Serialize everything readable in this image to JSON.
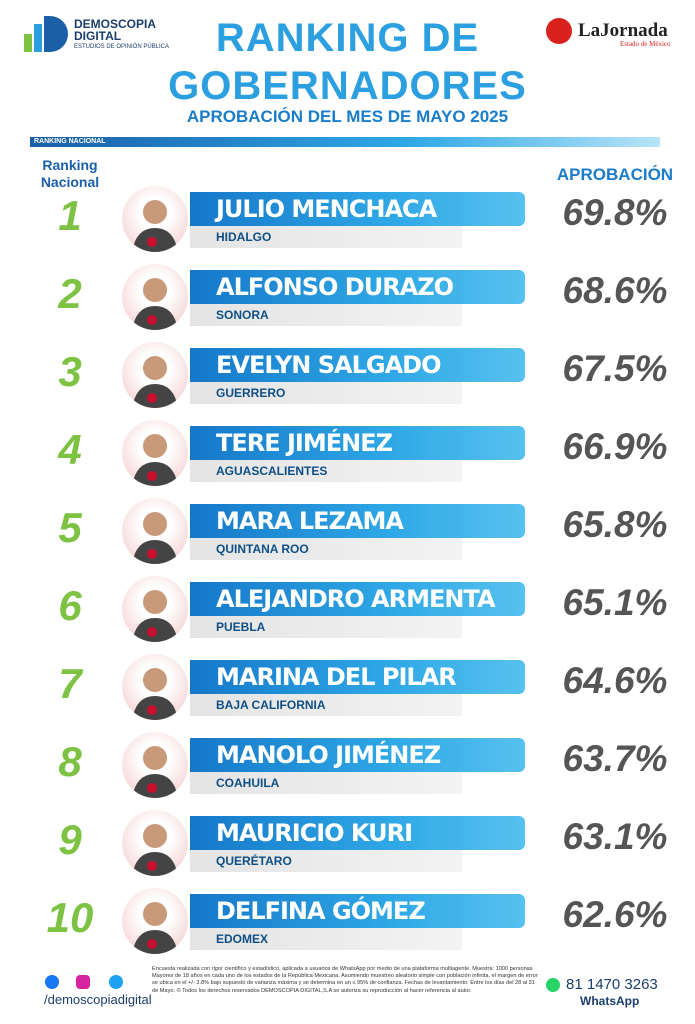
{
  "header": {
    "brand": "DEMOSCOPIA",
    "brand2": "DIGITAL",
    "brand_tagline": "ESTUDIOS DE OPINIÓN PÚBLICA",
    "title_line1": "RANKING DE",
    "title_line2": "GOBERNADORES",
    "subtitle": "APROBACIÓN DEL MES DE MAYO 2025",
    "partner": "LaJornada",
    "partner_sub": "Estado de México"
  },
  "section_label": "RANKING NACIONAL",
  "columns": {
    "rank": "Ranking Nacional",
    "approval": "APROBACIÓN"
  },
  "rows": [
    {
      "rank": "1",
      "name": "JULIO MENCHACA",
      "state": "HIDALGO",
      "approval": "69.8%"
    },
    {
      "rank": "2",
      "name": "ALFONSO DURAZO",
      "state": "SONORA",
      "approval": "68.6%"
    },
    {
      "rank": "3",
      "name": "EVELYN SALGADO",
      "state": "GUERRERO",
      "approval": "67.5%"
    },
    {
      "rank": "4",
      "name": "TERE JIMÉNEZ",
      "state": "AGUASCALIENTES",
      "approval": "66.9%"
    },
    {
      "rank": "5",
      "name": "MARA LEZAMA",
      "state": "QUINTANA ROO",
      "approval": "65.8%"
    },
    {
      "rank": "6",
      "name": "ALEJANDRO ARMENTA",
      "state": "PUEBLA",
      "approval": "65.1%"
    },
    {
      "rank": "7",
      "name": "MARINA DEL PILAR",
      "state": "BAJA CALIFORNIA",
      "approval": "64.6%"
    },
    {
      "rank": "8",
      "name": "MANOLO JIMÉNEZ",
      "state": "COAHUILA",
      "approval": "63.7%"
    },
    {
      "rank": "9",
      "name": "MAURICIO KURI",
      "state": "QUERÉTARO",
      "approval": "63.1%"
    },
    {
      "rank": "10",
      "name": "DELFINA GÓMEZ",
      "state": "EDOMEX",
      "approval": "62.6%"
    }
  ],
  "footer": {
    "social": "/demoscopiadigital",
    "disclaimer": "Encuesta realizada con rigor científico y estadístico, aplicada a usuarios de WhatsApp por medio de una plataforma multiagente. Muestra: 1000 personas Mayores de 18 años en cada uno de los estados de la República Mexicana. Asumiendo muestreo aleatorio simple con población infinita, el margen de error se ubica en el +/- 3.8% bajo supuesto de varianza máxima y se determina en un ≤ 95% de confianza. Fechas de levantamiento: Entre los días del 28 al 31 de Mayo. © Todos los derechos reservados DEMOSCOPIA DIGITAL,S.A se autoriza su reproducción al hacer referencia al autor.",
    "phone": "81 1470 3263",
    "phone_label": "WhatsApp"
  }
}
